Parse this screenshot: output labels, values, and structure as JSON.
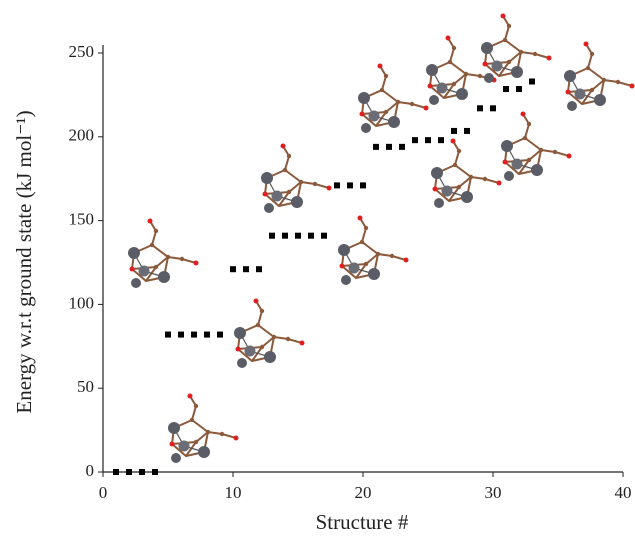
{
  "chart_data": {
    "type": "scatter",
    "xlabel": "Structure #",
    "ylabel": "Energy w.r.t ground state (kJ mol⁻¹)",
    "x": [
      1,
      2,
      3,
      4,
      5,
      6,
      7,
      8,
      9,
      10,
      11,
      12,
      13,
      14,
      15,
      16,
      17,
      18,
      19,
      20,
      21,
      22,
      23,
      24,
      25,
      26,
      27,
      28,
      29,
      30,
      31,
      32,
      33
    ],
    "values": [
      0,
      0,
      0,
      0,
      82,
      82,
      82,
      82,
      82,
      121,
      121,
      121,
      141,
      141,
      141,
      141,
      141,
      171,
      171,
      171,
      194,
      194,
      194,
      198,
      198,
      198,
      203.5,
      203.5,
      217,
      217,
      228.5,
      228.5,
      233
    ],
    "color": "#000000",
    "xlim": [
      0,
      40
    ],
    "xticks": [
      0,
      10,
      20,
      30,
      40
    ],
    "ylim": [
      0,
      250
    ],
    "yticks": [
      0,
      50,
      100,
      150,
      200,
      250
    ],
    "grid": false
  }
}
